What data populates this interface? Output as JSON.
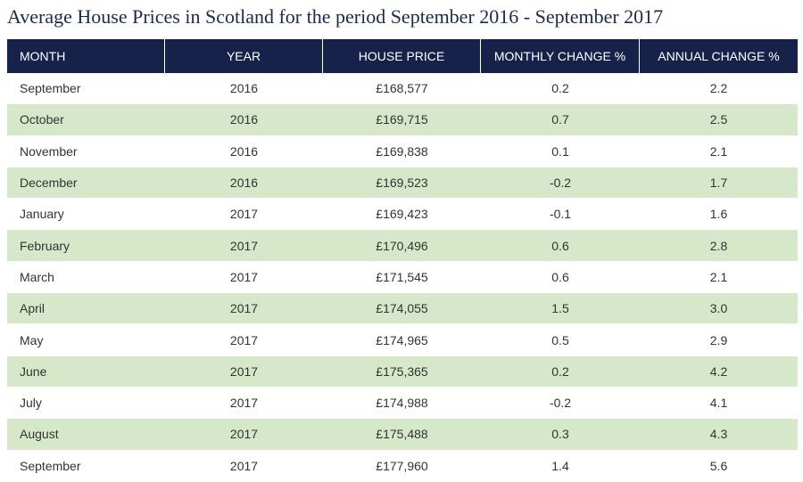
{
  "title": "Average House Prices in Scotland for the period September 2016 - September 2017",
  "colors": {
    "header_bg": "#17224a",
    "header_text": "#ffffff",
    "row_shade": "#d7e7c9",
    "row_plain": "#ffffff"
  },
  "chart_data": {
    "type": "table",
    "title": "Average House Prices in Scotland for the period September 2016 - September 2017",
    "columns": [
      "MONTH",
      "YEAR",
      "HOUSE PRICE",
      "MONTHLY CHANGE %",
      "ANNUAL CHANGE %"
    ],
    "rows": [
      [
        "September",
        "2016",
        "£168,577",
        "0.2",
        "2.2"
      ],
      [
        "October",
        "2016",
        "£169,715",
        "0.7",
        "2.5"
      ],
      [
        "November",
        "2016",
        "£169,838",
        "0.1",
        "2.1"
      ],
      [
        "December",
        "2016",
        "£169,523",
        "-0.2",
        "1.7"
      ],
      [
        "January",
        "2017",
        "£169,423",
        "-0.1",
        "1.6"
      ],
      [
        "February",
        "2017",
        "£170,496",
        "0.6",
        "2.8"
      ],
      [
        "March",
        "2017",
        "£171,545",
        "0.6",
        "2.1"
      ],
      [
        "April",
        "2017",
        "£174,055",
        "1.5",
        "3.0"
      ],
      [
        "May",
        "2017",
        "£174,965",
        "0.5",
        "2.9"
      ],
      [
        "June",
        "2017",
        "£175,365",
        "0.2",
        "4.2"
      ],
      [
        "July",
        "2017",
        "£174,988",
        "-0.2",
        "4.1"
      ],
      [
        "August",
        "2017",
        "£175,488",
        "0.3",
        "4.3"
      ],
      [
        "September",
        "2017",
        "£177,960",
        "1.4",
        "5.6"
      ]
    ]
  }
}
